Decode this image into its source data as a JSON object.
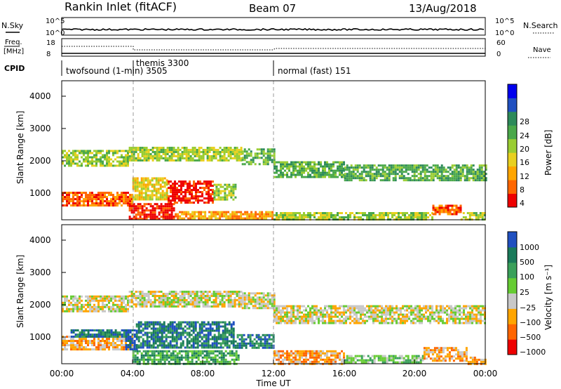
{
  "header": {
    "site": "Rankin Inlet (fitACF)",
    "beam": "Beam 07",
    "date": "13/Aug/2018"
  },
  "top_panels": {
    "nsky_label": "N.Sky",
    "nsky_ticks": [
      "10^5",
      "10^0"
    ],
    "nsearch_label": "N.Search",
    "freq_label_1": "Freq.",
    "freq_label_2": "[MHz]",
    "freq_ticks": [
      "18",
      "8"
    ],
    "nave_label": "Nave",
    "nave_ticks": [
      "60",
      "0"
    ],
    "cpid_label": "CPID",
    "cpid_entries": [
      {
        "label": "twofsound (1-min) 3505"
      },
      {
        "label": "themis 3300"
      },
      {
        "label": "normal (fast) 151"
      }
    ]
  },
  "chart_data": [
    {
      "type": "heatmap",
      "name": "power",
      "ylabel": "Slant Range [km]",
      "yticks": [
        "4000",
        "3000",
        "2000",
        "1000"
      ],
      "ylim": [
        180,
        4500
      ],
      "xlim": [
        0,
        24
      ],
      "colorbar": {
        "label": "Power [dB]",
        "ticks": [
          "28",
          "24",
          "20",
          "16",
          "12",
          "8",
          "4"
        ],
        "colors": [
          "#0000ee",
          "#2050c0",
          "#2d8a5a",
          "#4aa84a",
          "#9acd32",
          "#e8d020",
          "#ffa500",
          "#ff6600",
          "#ee0000"
        ]
      },
      "bands": [
        {
          "t0": 0.0,
          "t1": 3.8,
          "r0": 1850,
          "r1": 2350,
          "level": 4
        },
        {
          "t0": 3.8,
          "t1": 10.2,
          "r0": 2050,
          "r1": 2450,
          "level": 4
        },
        {
          "t0": 10.2,
          "t1": 12.0,
          "r0": 1900,
          "r1": 2400,
          "level": 3
        },
        {
          "t0": 12.0,
          "t1": 16.0,
          "r0": 1500,
          "r1": 2000,
          "level": 3
        },
        {
          "t0": 16.0,
          "t1": 24.0,
          "r0": 1400,
          "r1": 1900,
          "level": 3
        },
        {
          "t0": 0.0,
          "t1": 4.0,
          "r0": 650,
          "r1": 1050,
          "level": 7
        },
        {
          "t0": 4.0,
          "t1": 6.0,
          "r0": 800,
          "r1": 1500,
          "level": 5
        },
        {
          "t0": 6.0,
          "t1": 8.6,
          "r0": 700,
          "r1": 1400,
          "level": 8
        },
        {
          "t0": 8.6,
          "t1": 9.8,
          "r0": 800,
          "r1": 1300,
          "level": 4
        },
        {
          "t0": 3.8,
          "t1": 6.4,
          "r0": 200,
          "r1": 700,
          "level": 8
        },
        {
          "t0": 6.4,
          "t1": 12.0,
          "r0": 200,
          "r1": 450,
          "level": 6
        },
        {
          "t0": 12.0,
          "t1": 21.0,
          "r0": 200,
          "r1": 420,
          "level": 4
        },
        {
          "t0": 21.0,
          "t1": 22.6,
          "r0": 350,
          "r1": 650,
          "level": 7
        },
        {
          "t0": 22.6,
          "t1": 24.0,
          "r0": 200,
          "r1": 420,
          "level": 4
        }
      ]
    },
    {
      "type": "heatmap",
      "name": "velocity",
      "ylabel": "Slant Range [km]",
      "yticks": [
        "4000",
        "3000",
        "2000",
        "1000"
      ],
      "ylim": [
        180,
        4500
      ],
      "xlim": [
        0,
        24
      ],
      "colorbar": {
        "label": "Velocity [m s⁻¹]",
        "ticks": [
          "1000",
          "500",
          "100",
          "25",
          "−25",
          "−100",
          "−500",
          "−1000"
        ],
        "colors": [
          "#2050c0",
          "#1a7a5a",
          "#3aa05a",
          "#66cc33",
          "#c8c8c8",
          "#ffa500",
          "#ff6600",
          "#ee0000"
        ]
      },
      "bands": [
        {
          "t0": 0.0,
          "t1": 3.8,
          "r0": 1800,
          "r1": 2300,
          "level": 4
        },
        {
          "t0": 3.8,
          "t1": 10.2,
          "r0": 1950,
          "r1": 2450,
          "level": 4
        },
        {
          "t0": 10.2,
          "t1": 12.0,
          "r0": 1900,
          "r1": 2400,
          "level": 4
        },
        {
          "t0": 12.0,
          "t1": 24.0,
          "r0": 1450,
          "r1": 2000,
          "level": 4
        },
        {
          "t0": 0.0,
          "t1": 4.0,
          "r0": 650,
          "r1": 1050,
          "level": 5
        },
        {
          "t0": 0.5,
          "t1": 3.8,
          "r0": 1000,
          "r1": 1250,
          "level": 1
        },
        {
          "t0": 3.6,
          "t1": 4.2,
          "r0": 600,
          "r1": 1250,
          "level": 0
        },
        {
          "t0": 4.2,
          "t1": 9.8,
          "r0": 650,
          "r1": 1500,
          "level": 1
        },
        {
          "t0": 9.8,
          "t1": 12.0,
          "r0": 700,
          "r1": 1100,
          "level": 1
        },
        {
          "t0": 4.0,
          "t1": 10.0,
          "r0": 200,
          "r1": 600,
          "level": 2
        },
        {
          "t0": 12.0,
          "t1": 16.0,
          "r0": 200,
          "r1": 600,
          "level": 5
        },
        {
          "t0": 16.0,
          "t1": 20.5,
          "r0": 200,
          "r1": 450,
          "level": 3
        },
        {
          "t0": 20.5,
          "t1": 23.0,
          "r0": 250,
          "r1": 700,
          "level": 5
        },
        {
          "t0": 23.0,
          "t1": 24.0,
          "r0": 200,
          "r1": 400,
          "level": 5
        }
      ]
    }
  ],
  "xaxis": {
    "ticks": [
      "00:00",
      "04:00",
      "08:00",
      "12:00",
      "16:00",
      "20:00",
      "00:00"
    ],
    "label": "Time UT"
  }
}
